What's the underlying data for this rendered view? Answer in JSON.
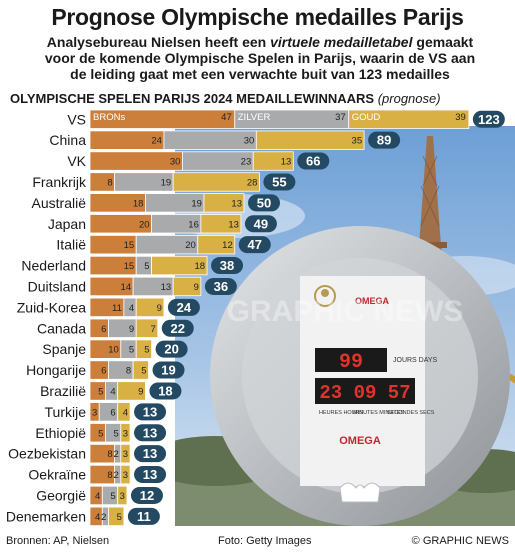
{
  "header": {
    "title": "Prognose Olympische medailles Parijs",
    "subtitle_before": "Analysebureau Nielsen heeft een ",
    "subtitle_italic": "virtuele medailletabel",
    "subtitle_after": " gemaakt voor de komende Olympische Spelen in Parijs, waarin de VS aan de leiding gaat met een verwachte buit van 123 medailles",
    "chart_heading": "OLYMPISCHE SPELEN PARIJS 2024 MEDAILLEWINNAARS",
    "chart_heading_note": "(prognose)"
  },
  "colors": {
    "bronze": "#cc7f3b",
    "silver": "#a9aaab",
    "gold": "#d9b043",
    "total_badge": "#244a63"
  },
  "photo": {
    "clock_days": "99",
    "clock_days_label": "JOURS DAYS",
    "clock_time": "23 09 57",
    "clock_units": [
      "HEURES HOURS",
      "MINUTES MINUTES",
      "SECONDES SECS"
    ],
    "clock_brand": "OMEGA",
    "watermark": "GRAPHIC NEWS"
  },
  "chart_data": {
    "type": "bar",
    "orientation": "horizontal",
    "stacked": true,
    "categories": [
      "VS",
      "China",
      "VK",
      "Frankrijk",
      "Australië",
      "Japan",
      "Italië",
      "Nederland",
      "Duitsland",
      "Zuid-Korea",
      "Canada",
      "Spanje",
      "Hongarije",
      "Brazilië",
      "Turkije",
      "Ethiopië",
      "Oezbekistan",
      "Oekraïne",
      "Georgië",
      "Denemarken"
    ],
    "series": [
      {
        "name": "BRONs",
        "values": [
          47,
          24,
          30,
          8,
          18,
          20,
          15,
          15,
          14,
          11,
          6,
          10,
          6,
          5,
          3,
          5,
          8,
          8,
          4,
          4
        ]
      },
      {
        "name": "ZILVER",
        "values": [
          37,
          30,
          23,
          19,
          19,
          16,
          20,
          5,
          13,
          4,
          9,
          5,
          8,
          4,
          6,
          5,
          2,
          2,
          5,
          2
        ]
      },
      {
        "name": "GOUD",
        "values": [
          39,
          35,
          13,
          28,
          13,
          13,
          12,
          18,
          9,
          9,
          7,
          5,
          5,
          9,
          4,
          3,
          3,
          3,
          3,
          5
        ]
      }
    ],
    "totals": [
      123,
      89,
      66,
      55,
      50,
      49,
      47,
      38,
      36,
      24,
      22,
      20,
      19,
      18,
      13,
      13,
      13,
      13,
      12,
      11
    ]
  },
  "footer": {
    "sources": "Bronnen: AP, Nielsen",
    "photo_credit": "Foto: Getty Images",
    "copyright": "© GRAPHIC NEWS"
  }
}
